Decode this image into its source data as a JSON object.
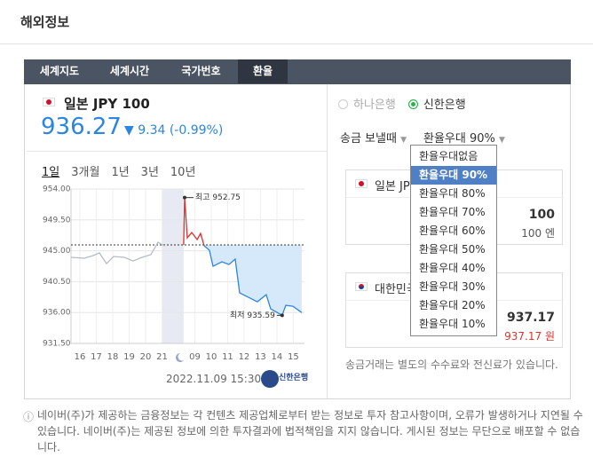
{
  "header": {
    "title": "해외정보"
  },
  "tabs": [
    "세계지도",
    "세계시간",
    "국가번호",
    "환율"
  ],
  "currency": {
    "name": "일본 JPY 100",
    "rate": "936.27",
    "change": "9.34 (-0.99%)"
  },
  "periods": [
    "1일",
    "3개월",
    "1년",
    "3년",
    "10년"
  ],
  "chart_data": {
    "type": "line",
    "xlim": [
      -0.54,
      13.68
    ],
    "xticks": [
      {
        "value": 0,
        "label": "16"
      },
      {
        "value": 1,
        "label": "17"
      },
      {
        "value": 2,
        "label": "18"
      },
      {
        "value": 3,
        "label": "19"
      },
      {
        "value": 4,
        "label": "20"
      },
      {
        "value": 5,
        "label": "21"
      },
      {
        "value": 7,
        "label": "09"
      },
      {
        "value": 8,
        "label": "10"
      },
      {
        "value": 9,
        "label": "11"
      },
      {
        "value": 10,
        "label": "12"
      },
      {
        "value": 11,
        "label": "13"
      },
      {
        "value": 12,
        "label": "14"
      },
      {
        "value": 13,
        "label": "15"
      }
    ],
    "ylim": [
      931.5,
      954
    ],
    "yticks": [
      {
        "value": 954,
        "label": "954.00"
      },
      {
        "value": 949.5,
        "label": "949.50"
      },
      {
        "value": 945,
        "label": "945.00"
      },
      {
        "value": 940.5,
        "label": "940.50"
      },
      {
        "value": 936,
        "label": "936.00"
      },
      {
        "value": 931.5,
        "label": "931.50"
      }
    ],
    "grid": true,
    "reference_line": 945.85,
    "shaded_range": [
      5.03,
      6.32
    ],
    "series": [
      {
        "color": "#b4bcc8",
        "x": [
          -0.54,
          0.27,
          0.81,
          1.19,
          1.62,
          2.05,
          2.7,
          3.24,
          3.78,
          4.32,
          4.76,
          5.14
        ],
        "values": [
          944.04,
          943.91,
          944.3,
          944.69,
          943.13,
          944.17,
          944.04,
          943.52,
          944.04,
          944.43,
          946.24,
          945.72
        ]
      },
      {
        "color": "#e0312e",
        "x": [
          6.32,
          6.38,
          6.54,
          6.81,
          7.14,
          7.35,
          7.57
        ],
        "values": [
          945.85,
          952.75,
          946.88,
          947.66,
          946.63,
          947.53,
          945.72
        ]
      },
      {
        "color": "#2a86e0",
        "fill": "#d6e9fb",
        "x": [
          7.57,
          7.89,
          8.11,
          8.65,
          9.08,
          9.46,
          9.73,
          10.27,
          10.81,
          11.35,
          11.62,
          12.32,
          12.54,
          12.97,
          13.51
        ],
        "values": [
          945.72,
          945.07,
          942.74,
          943.39,
          943.0,
          943.78,
          938.86,
          938.22,
          937.57,
          938.6,
          936.54,
          935.59,
          937.05,
          936.92,
          936.0
        ]
      }
    ],
    "annotations": [
      {
        "label": "최고 952.75",
        "series": 1,
        "point": 1
      },
      {
        "label": "최저 935.59",
        "series": 2,
        "point": 11
      }
    ]
  },
  "timestamp": "2022.11.09 15:30",
  "bank_logo": "신한은행",
  "banks": [
    "하나은행",
    "신한은행"
  ],
  "send_label": "송금 보낼때",
  "preference_label": "환율우대 90%",
  "preference_options": [
    "환율우대없음",
    "환율우대 90%",
    "환율우대 80%",
    "환율우대 70%",
    "환율우대 60%",
    "환율우대 50%",
    "환율우대 40%",
    "환율우대 30%",
    "환율우대 20%",
    "환율우대 10%"
  ],
  "from_box": {
    "label": "일본 JPY",
    "amount": "100",
    "unit_amount": "100 엔"
  },
  "to_box": {
    "label": "대한민국 KRW",
    "amount": "937.17",
    "unit_amount": "937.17 원"
  },
  "note": "송금거래는 별도의 수수료와 전신료가 있습니다.",
  "disclaimer": "네이버(주)가 제공하는 금융정보는 각 컨텐츠 제공업체로부터 받는 정보로 투자 참고사항이며, 오류가 발생하거나 지연될 수 있습니다. 네이버(주)는 제공된 정보에 의한 투자결과에 법적책임을 지지 않습니다. 게시된 정보는 무단으로 배포할 수 없습니다."
}
